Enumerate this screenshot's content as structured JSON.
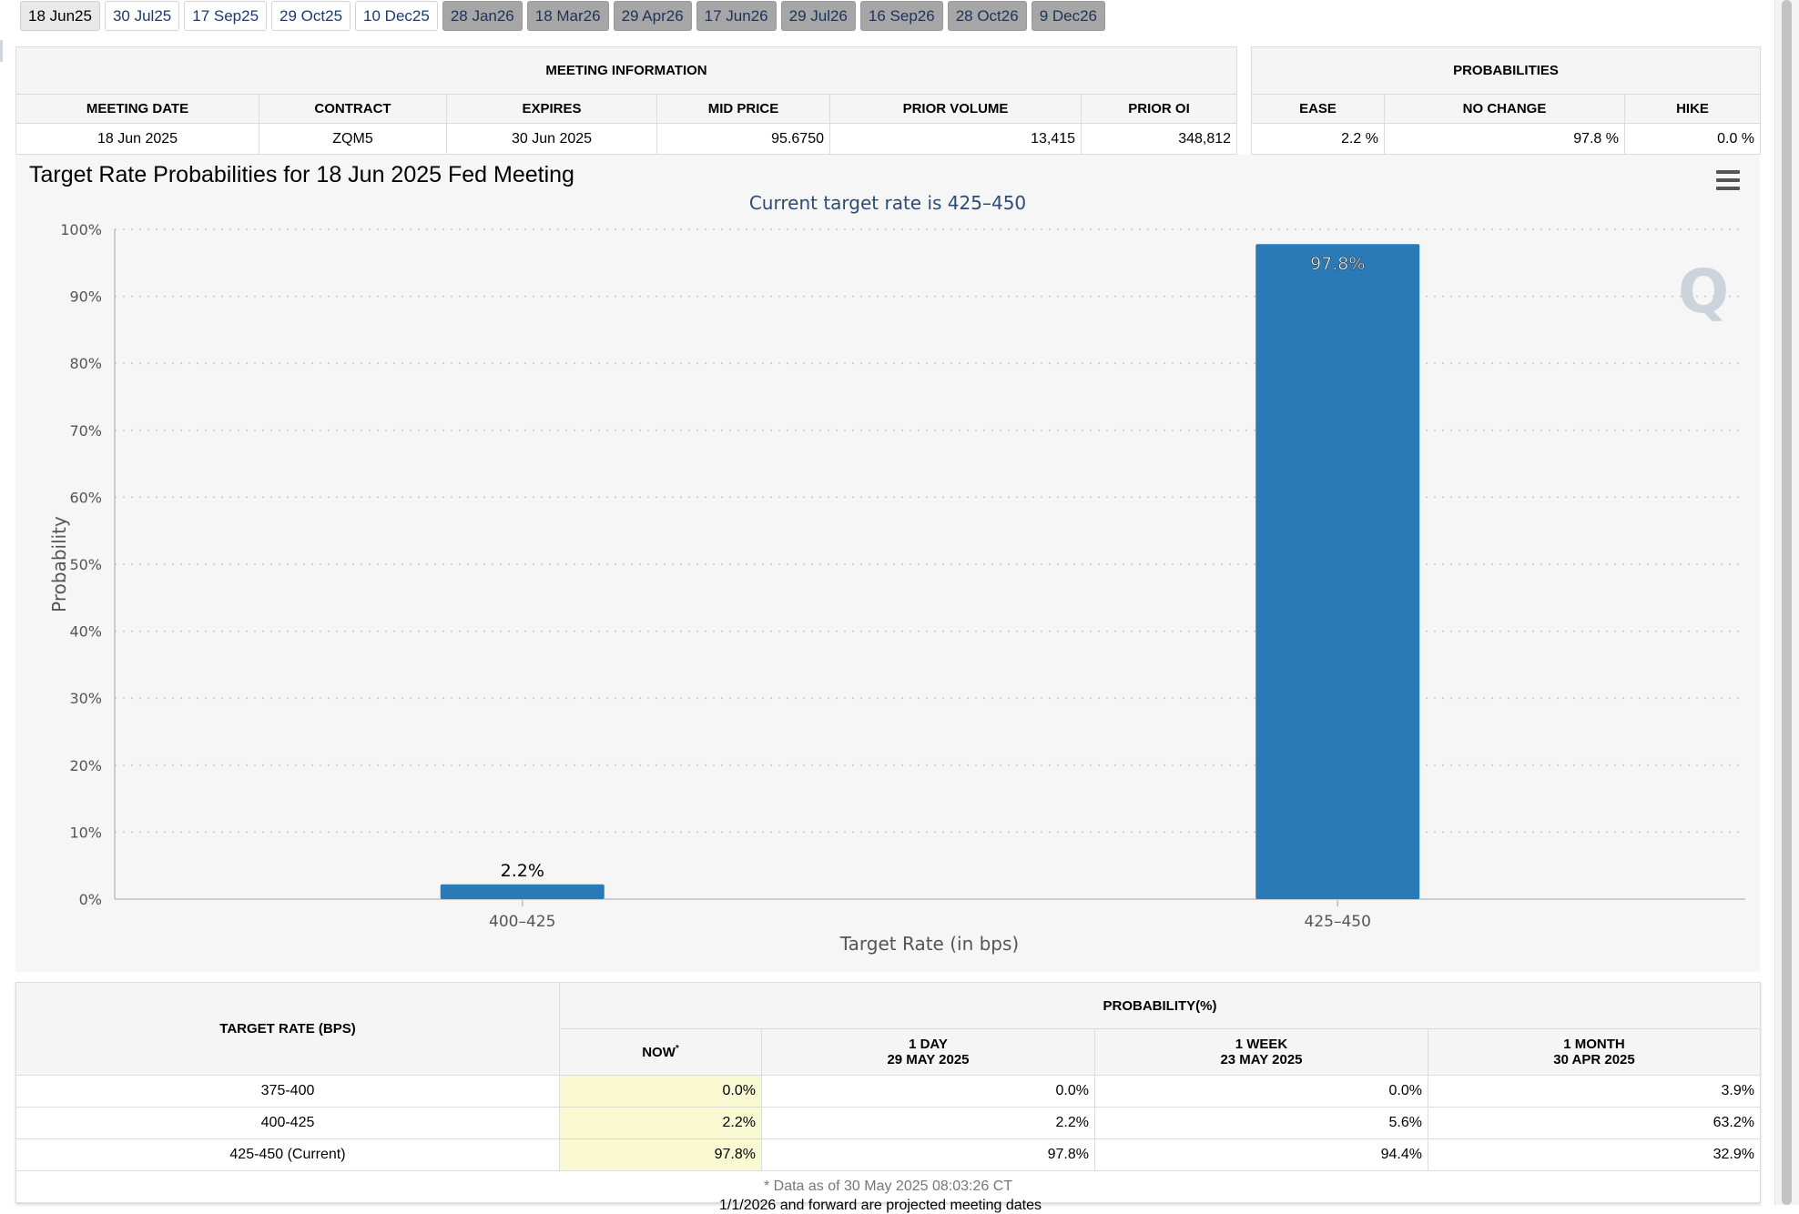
{
  "tabs": [
    "18 Jun25",
    "30 Jul25",
    "17 Sep25",
    "29 Oct25",
    "10 Dec25",
    "28 Jan26",
    "18 Mar26",
    "29 Apr26",
    "17 Jun26",
    "29 Jul26",
    "16 Sep26",
    "28 Oct26",
    "9 Dec26"
  ],
  "tab_states": [
    "active",
    "normal",
    "normal",
    "normal",
    "normal",
    "future",
    "future",
    "future",
    "future",
    "future",
    "future",
    "future",
    "future"
  ],
  "meeting_info": {
    "group_title": "MEETING INFORMATION",
    "headers": [
      "MEETING DATE",
      "CONTRACT",
      "EXPIRES",
      "MID PRICE",
      "PRIOR VOLUME",
      "PRIOR OI"
    ],
    "values": [
      "18 Jun 2025",
      "ZQM5",
      "30 Jun 2025",
      "95.6750",
      "13,415",
      "348,812"
    ]
  },
  "probabilities": {
    "group_title": "PROBABILITIES",
    "headers": [
      "EASE",
      "NO CHANGE",
      "HIKE"
    ],
    "values": [
      "2.2 %",
      "97.8 %",
      "0.0 %"
    ]
  },
  "chart_data": {
    "type": "bar",
    "title": "Target Rate Probabilities for 18 Jun 2025 Fed Meeting",
    "subtitle": "Current target rate is 425–450",
    "xlabel": "Target Rate (in bps)",
    "ylabel": "Probability",
    "categories": [
      "400–425",
      "425–450"
    ],
    "values": [
      2.2,
      97.8
    ],
    "data_labels": [
      "2.2%",
      "97.8%"
    ],
    "ylim": [
      0,
      100
    ],
    "yticks": [
      "0%",
      "10%",
      "20%",
      "30%",
      "40%",
      "50%",
      "60%",
      "70%",
      "80%",
      "90%",
      "100%"
    ],
    "grid": true,
    "bar_color": "#2a7ab8"
  },
  "bottom_table": {
    "target_header": "TARGET RATE (BPS)",
    "group_header": "PROBABILITY(%)",
    "columns": [
      {
        "label": "NOW",
        "sup": "*",
        "date": ""
      },
      {
        "label": "1 DAY",
        "sup": "",
        "date": "29 MAY 2025"
      },
      {
        "label": "1 WEEK",
        "sup": "",
        "date": "23 MAY 2025"
      },
      {
        "label": "1 MONTH",
        "sup": "",
        "date": "30 APR 2025"
      }
    ],
    "rows": [
      {
        "rate": "375-400",
        "values": [
          "0.0%",
          "0.0%",
          "0.0%",
          "3.9%"
        ]
      },
      {
        "rate": "400-425",
        "values": [
          "2.2%",
          "2.2%",
          "5.6%",
          "63.2%"
        ]
      },
      {
        "rate": "425-450 (Current)",
        "values": [
          "97.8%",
          "97.8%",
          "94.4%",
          "32.9%"
        ]
      }
    ],
    "footnote": "* Data as of 30 May 2025 08:03:26 CT"
  },
  "page_note": "1/1/2026 and forward are projected meeting dates",
  "watermark": "Q",
  "icons": {
    "menu": "hamburger-menu-icon"
  }
}
